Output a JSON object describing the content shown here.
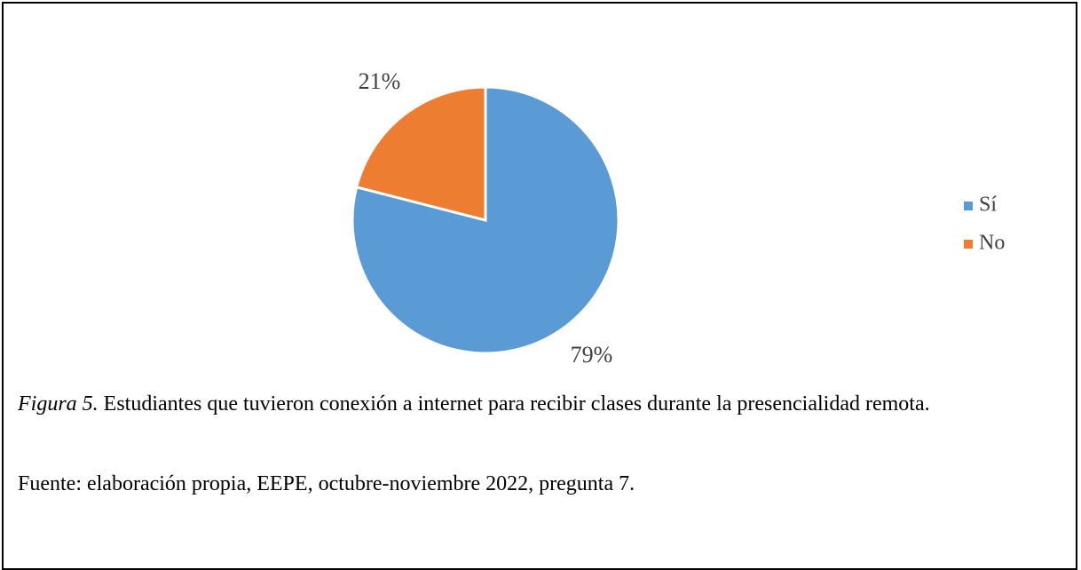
{
  "chart_data": {
    "type": "pie",
    "categories": [
      "Sí",
      "No"
    ],
    "values": [
      79,
      21
    ],
    "value_labels": [
      "79%",
      "21%"
    ],
    "colors": [
      "#5b9bd5",
      "#ed7d31"
    ],
    "legend": "right",
    "figure_label": "Figura 5.",
    "caption": "Estudiantes que tuvieron conexión a internet para recibir clases durante la presencialidad remota.",
    "source": "Fuente: elaboración propia, EEPE, octubre-noviembre 2022, pregunta 7."
  }
}
